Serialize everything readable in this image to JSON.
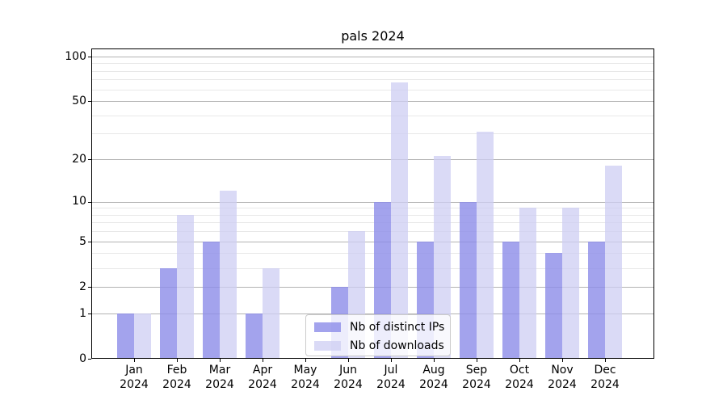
{
  "chart_data": {
    "type": "bar",
    "title": "pals 2024",
    "x_categories": [
      {
        "month": "Jan",
        "year": "2024"
      },
      {
        "month": "Feb",
        "year": "2024"
      },
      {
        "month": "Mar",
        "year": "2024"
      },
      {
        "month": "Apr",
        "year": "2024"
      },
      {
        "month": "May",
        "year": "2024"
      },
      {
        "month": "Jun",
        "year": "2024"
      },
      {
        "month": "Jul",
        "year": "2024"
      },
      {
        "month": "Aug",
        "year": "2024"
      },
      {
        "month": "Sep",
        "year": "2024"
      },
      {
        "month": "Oct",
        "year": "2024"
      },
      {
        "month": "Nov",
        "year": "2024"
      },
      {
        "month": "Dec",
        "year": "2024"
      }
    ],
    "series": [
      {
        "name": "Nb of distinct IPs",
        "color": "#a3a3ec",
        "fill": "rgba(140,140,232,0.8)",
        "values": [
          1,
          3,
          5,
          1,
          0,
          2,
          10,
          5,
          10,
          5,
          4,
          5
        ]
      },
      {
        "name": "Nb of downloads",
        "color": "#d9d9f6",
        "fill": "rgba(205,205,243,0.75)",
        "values": [
          1,
          8,
          12,
          3,
          0,
          6,
          67,
          21,
          31,
          9,
          9,
          18
        ]
      }
    ],
    "yscale": "log1p",
    "ylim": [
      0,
      113
    ],
    "y_major_ticks": [
      0,
      1,
      2,
      5,
      10,
      20,
      50,
      100
    ],
    "y_minor_ticks": [
      3,
      4,
      6,
      7,
      8,
      9,
      30,
      40,
      60,
      70,
      80,
      90
    ],
    "grid": "horizontal-only",
    "legend": {
      "position": "lower-center"
    }
  },
  "colors": {
    "background": "#ffffff",
    "text": "#000000",
    "spine": "#000000",
    "major_grid": "#b3b3b3",
    "minor_grid": "#e8e8e8"
  }
}
